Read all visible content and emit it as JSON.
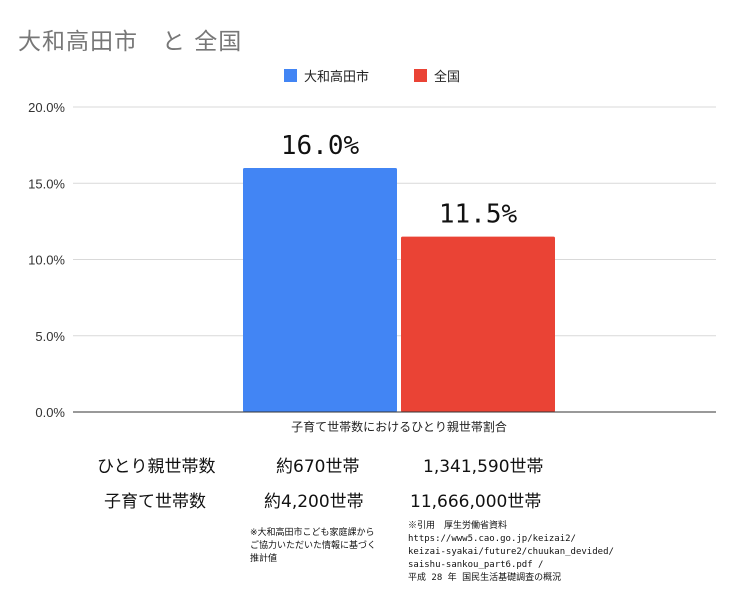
{
  "colors": {
    "blue": "#4285f4",
    "red": "#ea4335",
    "grid": "#d9d9d9",
    "axis": "#333333"
  },
  "chart_data": {
    "type": "bar",
    "title": "大和高田市　と 全国",
    "categories": [
      "子育て世帯数におけるひとり親世帯割合"
    ],
    "series": [
      {
        "name": "大和高田市",
        "values": [
          16.0
        ],
        "color": "#4285f4",
        "label": "16.0%"
      },
      {
        "name": "全国",
        "values": [
          11.5
        ],
        "color": "#ea4335",
        "label": "11.5%"
      }
    ],
    "y_ticks": [
      "0.0%",
      "5.0%",
      "10.0%",
      "15.0%",
      "20.0%"
    ],
    "ylim": [
      0,
      20
    ],
    "grid": true,
    "legend_position": "top-center"
  },
  "table": {
    "rows": [
      {
        "label": "ひとり親世帯数",
        "city": "約670世帯",
        "national": "1,341,590世帯"
      },
      {
        "label": "子育て世帯数",
        "city": "約4,200世帯",
        "national": "11,666,000世帯"
      }
    ]
  },
  "notes": {
    "city_note": [
      "※大和高田市こども家庭課から",
      "ご協力いただいた情報に基づく",
      "推計値"
    ],
    "source_note": [
      "※引用　厚生労働省資料",
      "https://www5.cao.go.jp/keizai2/",
      "keizai-syakai/future2/chuukan_devided/",
      "saishu-sankou_part6.pdf /",
      "平成 28 年 国民生活基礎調査の概況"
    ]
  }
}
